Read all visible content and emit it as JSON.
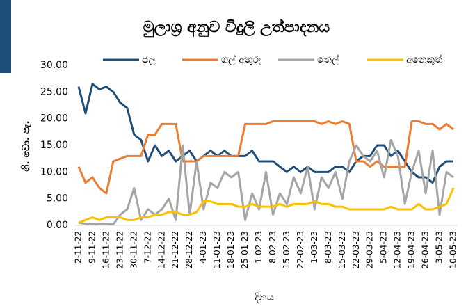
{
  "chart_data": {
    "type": "line",
    "title": "මුලාශ්‍ර අනුව විදුලි උත්පාදනය",
    "y_label": "ගි. වො. පැ.",
    "x_label": "දිනය",
    "categories": [
      "2-11-22",
      null,
      "9-11-22",
      null,
      "16-11-22",
      null,
      "23-11-22",
      null,
      "30-11-22",
      null,
      "7-12-22",
      null,
      "14-12-22",
      null,
      "21-12-22",
      null,
      "28-12-22",
      null,
      "4-01-23",
      null,
      "11-01-23",
      null,
      "18-01-23",
      null,
      "25-01-23",
      null,
      "1-02-23",
      null,
      "8-02-23",
      null,
      "15-02-23",
      null,
      "22-02-23",
      null,
      "1-03-23",
      null,
      "8-03-23",
      null,
      "15-03-23",
      null,
      "22-03-23",
      null,
      "29-03-23",
      null,
      "5-04-23",
      null,
      "12-04-23",
      null,
      "19-04-23",
      null,
      "26-04-23",
      null,
      "3-05-23",
      null,
      "10-05-23"
    ],
    "series": [
      {
        "name": "ජල",
        "color": "#1f4e79",
        "values": [
          26,
          21,
          26.5,
          25.5,
          26,
          25,
          23,
          22,
          17,
          16,
          12,
          15,
          13,
          14,
          12,
          13,
          14,
          12,
          13,
          14,
          13,
          14,
          13,
          13,
          13,
          14,
          12,
          12,
          12,
          11,
          10,
          11,
          10,
          11,
          10,
          10,
          10,
          11,
          11,
          10,
          12,
          13,
          13,
          15,
          15,
          13,
          14,
          12,
          10,
          9,
          9,
          8,
          11,
          12,
          12
        ]
      },
      {
        "name": "ගල් අඟුරු",
        "color": "#ed7d31",
        "values": [
          11,
          8,
          9,
          7,
          6,
          12,
          12.5,
          13,
          13,
          13,
          17,
          17,
          19,
          19,
          19,
          12,
          12,
          12,
          13,
          13,
          13,
          13,
          13,
          13,
          19,
          19,
          19,
          19,
          19.5,
          19.5,
          19.5,
          19.5,
          19.5,
          19.5,
          19.5,
          19,
          19.5,
          19,
          19.5,
          19,
          12,
          12,
          11,
          12,
          11,
          11,
          11,
          11,
          19.5,
          19.5,
          19,
          19,
          18,
          19,
          18
        ]
      },
      {
        "name": "තෙල්",
        "color": "#a5a5a5",
        "values": [
          0.5,
          0.3,
          0.2,
          0.3,
          0.3,
          0.2,
          2,
          3,
          7,
          1,
          3,
          2,
          3,
          5,
          1,
          15,
          2,
          12,
          3,
          8,
          7,
          10,
          9,
          10,
          1,
          6,
          3,
          10,
          2,
          6,
          4,
          9,
          6,
          11,
          3,
          9,
          7,
          10,
          5,
          12,
          15,
          13,
          12,
          14,
          9,
          16,
          13,
          4,
          10,
          14,
          6,
          14,
          2,
          10,
          9
        ]
      },
      {
        "name": "අනෙකුත්",
        "color": "#ffc000",
        "values": [
          0.5,
          1,
          1.5,
          1,
          1.5,
          1.5,
          1.5,
          1,
          1,
          1.5,
          1.5,
          2,
          2,
          2.5,
          2.5,
          2,
          2,
          2.5,
          4.5,
          4.5,
          4,
          4,
          4,
          3.5,
          3.5,
          4,
          3.5,
          3.5,
          3.5,
          4,
          3.5,
          4,
          4,
          4,
          4.5,
          4,
          4,
          3.5,
          3.5,
          3,
          3,
          3,
          3,
          3,
          3,
          3.5,
          3,
          3,
          3,
          4,
          3,
          3,
          3.5,
          4,
          7
        ]
      }
    ],
    "ylim": [
      0,
      30
    ],
    "yticks": [
      {
        "value": 0,
        "label": "0.00"
      },
      {
        "value": 5,
        "label": "5.00"
      },
      {
        "value": 10,
        "label": "10.00"
      },
      {
        "value": 15,
        "label": "15.00"
      },
      {
        "value": 20,
        "label": "20.00"
      },
      {
        "value": 25,
        "label": "25.00"
      },
      {
        "value": 30,
        "label": "30.00"
      }
    ],
    "legend": "top"
  }
}
